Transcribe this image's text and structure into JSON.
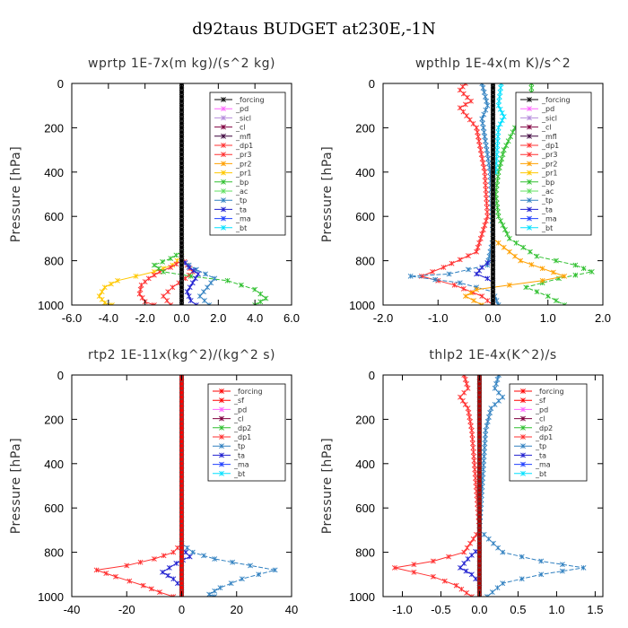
{
  "figure_title": "d92taus  BUDGET at230E,-1N",
  "colors": {
    "_forcing": "#000000",
    "_sf": "#ff0000",
    "_pd": "#ff66ff",
    "_sicl": "#b48cdc",
    "_cl": "#800040",
    "_mfl": "#3c003c",
    "_dp1": "#ff3030",
    "_pr3": "#ff3030",
    "_pr2": "#ffa000",
    "_pr1": "#ffc800",
    "_bp": "#30c030",
    "_ac": "#60e060",
    "_dp2": "#30c030",
    "_tp": "#3080c0",
    "_ta": "#2020d0",
    "_ma": "#2040ff",
    "_bt": "#00e0ff"
  },
  "chart_data": [
    {
      "type": "line",
      "title": "wprtp  1E-7x(m kg)/(s^2 kg)",
      "ylabel": "Pressure [hPa]",
      "xlim": [
        -6,
        6
      ],
      "ylim": [
        1000,
        0
      ],
      "xticks": [
        "-6.0",
        "-4.0",
        "-2.0",
        "0.0",
        "2.0",
        "4.0",
        "6.0"
      ],
      "yticks": [
        "0",
        "200",
        "400",
        "600",
        "800",
        "1000"
      ],
      "legend": [
        "_forcing",
        "_pd",
        "_sicl",
        "_cl",
        "_mfl",
        "_dp1",
        "_pr3",
        "_pr2",
        "_pr1",
        "_bp",
        "_ac",
        "_tp",
        "_ta",
        "_ma",
        "_bt"
      ],
      "series": [
        {
          "name": "_pr1",
          "points": [
            [
              0,
              780
            ],
            [
              -0.5,
              820
            ],
            [
              -1.5,
              850
            ],
            [
              -2.5,
              870
            ],
            [
              -3.5,
              890
            ],
            [
              -4.2,
              920
            ],
            [
              -4.5,
              960
            ],
            [
              -4.2,
              990
            ],
            [
              -3.8,
              1000
            ]
          ]
        },
        {
          "name": "_pr3",
          "points": [
            [
              0,
              800
            ],
            [
              -0.6,
              830
            ],
            [
              -1.2,
              850
            ],
            [
              -1.8,
              880
            ],
            [
              -2.2,
              910
            ],
            [
              -2.3,
              950
            ],
            [
              -2.0,
              985
            ],
            [
              -1.5,
              1000
            ]
          ]
        },
        {
          "name": "_dp1",
          "points": [
            [
              0,
              790
            ],
            [
              0.3,
              820
            ],
            [
              0.6,
              850
            ],
            [
              0.2,
              880
            ],
            [
              -0.5,
              920
            ],
            [
              -1.0,
              960
            ],
            [
              -0.6,
              1000
            ]
          ]
        },
        {
          "name": "_bp",
          "points": [
            [
              0,
              760
            ],
            [
              -0.6,
              790
            ],
            [
              -1.5,
              820
            ],
            [
              -1.0,
              850
            ],
            [
              0.5,
              870
            ],
            [
              2.5,
              890
            ],
            [
              4.0,
              930
            ],
            [
              4.6,
              970
            ],
            [
              4.0,
              1000
            ]
          ]
        },
        {
          "name": "_tp",
          "points": [
            [
              0,
              800
            ],
            [
              0.8,
              840
            ],
            [
              1.8,
              880
            ],
            [
              1.4,
              920
            ],
            [
              1.0,
              960
            ],
            [
              1.5,
              1000
            ]
          ]
        },
        {
          "name": "_ta",
          "points": [
            [
              0,
              790
            ],
            [
              0.4,
              830
            ],
            [
              0.9,
              860
            ],
            [
              0.6,
              900
            ],
            [
              0.3,
              940
            ],
            [
              0.5,
              980
            ],
            [
              0.8,
              1000
            ]
          ]
        },
        {
          "name": "_forcing",
          "points": [
            [
              0,
              0
            ],
            [
              0,
              1000
            ]
          ],
          "thick": true
        }
      ]
    },
    {
      "type": "line",
      "title": "wpthlp  1E-4x(m K)/s^2",
      "ylabel": "Pressure [hPa]",
      "xlim": [
        -2,
        2
      ],
      "ylim": [
        1000,
        0
      ],
      "xticks": [
        "-2.0",
        "-1.0",
        "0.0",
        "1.0",
        "2.0"
      ],
      "yticks": [
        "0",
        "200",
        "400",
        "600",
        "800",
        "1000"
      ],
      "legend": [
        "_forcing",
        "_pd",
        "_sicl",
        "_cl",
        "_mfl",
        "_dp1",
        "_pr3",
        "_pr2",
        "_pr1",
        "_bp",
        "_ac",
        "_tp",
        "_ta",
        "_ma",
        "_bt"
      ],
      "series": [
        {
          "name": "_bp",
          "points": [
            [
              0.7,
              0
            ],
            [
              0.7,
              40
            ],
            [
              0.9,
              100
            ],
            [
              0.6,
              160
            ],
            [
              0.4,
              200
            ],
            [
              0.2,
              300
            ],
            [
              0.1,
              400
            ],
            [
              0.05,
              500
            ],
            [
              0.1,
              600
            ],
            [
              0.3,
              700
            ],
            [
              0.8,
              780
            ],
            [
              1.5,
              820
            ],
            [
              1.8,
              850
            ],
            [
              1.2,
              880
            ],
            [
              0.6,
              920
            ],
            [
              1.0,
              960
            ],
            [
              1.3,
              1000
            ]
          ]
        },
        {
          "name": "_dp1",
          "points": [
            [
              -0.5,
              0
            ],
            [
              -0.6,
              30
            ],
            [
              -0.4,
              80
            ],
            [
              -0.6,
              110
            ],
            [
              -0.3,
              200
            ],
            [
              -0.15,
              400
            ],
            [
              -0.1,
              600
            ],
            [
              -0.3,
              760
            ],
            [
              -0.9,
              830
            ],
            [
              -1.3,
              870
            ],
            [
              -0.7,
              910
            ],
            [
              -0.2,
              960
            ],
            [
              0,
              1000
            ]
          ]
        },
        {
          "name": "_tp",
          "points": [
            [
              -0.2,
              0
            ],
            [
              -0.1,
              100
            ],
            [
              -0.2,
              160
            ],
            [
              -0.05,
              400
            ],
            [
              0,
              700
            ],
            [
              -0.1,
              820
            ],
            [
              -0.8,
              860
            ],
            [
              -1.5,
              870
            ],
            [
              -0.6,
              900
            ],
            [
              0,
              940
            ],
            [
              0.1,
              1000
            ]
          ]
        },
        {
          "name": "_pr2",
          "points": [
            [
              0,
              700
            ],
            [
              0.5,
              800
            ],
            [
              1.3,
              870
            ],
            [
              0.9,
              890
            ],
            [
              -0.3,
              930
            ],
            [
              -0.5,
              960
            ],
            [
              -0.2,
              1000
            ]
          ]
        },
        {
          "name": "_ta",
          "points": [
            [
              0,
              790
            ],
            [
              -0.2,
              830
            ],
            [
              -0.3,
              860
            ],
            [
              -0.1,
              880
            ],
            [
              0,
              900
            ]
          ]
        },
        {
          "name": "_bt",
          "points": [
            [
              0.15,
              0
            ],
            [
              0.1,
              100
            ],
            [
              0.2,
              150
            ],
            [
              0.1,
              200
            ],
            [
              0.05,
              400
            ]
          ]
        },
        {
          "name": "_forcing",
          "points": [
            [
              0,
              0
            ],
            [
              0,
              1000
            ]
          ],
          "thick": true
        }
      ]
    },
    {
      "type": "line",
      "title": "rtp2  1E-11x(kg^2)/(kg^2 s)",
      "ylabel": "Pressure [hPa]",
      "xlim": [
        -40,
        40
      ],
      "ylim": [
        1000,
        0
      ],
      "xticks": [
        "-40",
        "-20",
        "0",
        "20",
        "40"
      ],
      "yticks": [
        "0",
        "200",
        "400",
        "600",
        "800",
        "1000"
      ],
      "legend": [
        "_forcing",
        "_sf",
        "_pd",
        "_cl",
        "_dp2",
        "_dp1",
        "_tp",
        "_ta",
        "_ma",
        "_bt"
      ],
      "series": [
        {
          "name": "_dp1",
          "points": [
            [
              0,
              760
            ],
            [
              -3,
              800
            ],
            [
              -10,
              830
            ],
            [
              -20,
              860
            ],
            [
              -31,
              880
            ],
            [
              -24,
              910
            ],
            [
              -14,
              950
            ],
            [
              -8,
              980
            ],
            [
              -3,
              1000
            ]
          ]
        },
        {
          "name": "_tp",
          "points": [
            [
              0,
              760
            ],
            [
              4,
              800
            ],
            [
              12,
              830
            ],
            [
              25,
              860
            ],
            [
              34,
              880
            ],
            [
              22,
              920
            ],
            [
              14,
              960
            ],
            [
              10,
              990
            ],
            [
              12,
              1000
            ]
          ]
        },
        {
          "name": "_ta",
          "points": [
            [
              0,
              780
            ],
            [
              3,
              820
            ],
            [
              -2,
              850
            ],
            [
              -7,
              890
            ],
            [
              -3,
              920
            ],
            [
              0,
              960
            ]
          ]
        },
        {
          "name": "_forcing",
          "points": [
            [
              0,
              0
            ],
            [
              0,
              1000
            ]
          ],
          "thick": true,
          "color": "#ff0000"
        }
      ]
    },
    {
      "type": "line",
      "title": "thlp2  1E-4x(K^2)/s",
      "ylabel": "Pressure [hPa]",
      "xlim": [
        -1.25,
        1.6
      ],
      "ylim": [
        1000,
        0
      ],
      "xticks": [
        "-1.0",
        "-0.5",
        "0.0",
        "0.5",
        "1.0",
        "1.5"
      ],
      "xtick_values": [
        -1.0,
        -0.5,
        0.0,
        0.5,
        1.0,
        1.5
      ],
      "yticks": [
        "0",
        "200",
        "400",
        "600",
        "800",
        "1000"
      ],
      "legend": [
        "_forcing",
        "_sf",
        "_pd",
        "_cl",
        "_dp2",
        "_dp1",
        "_tp",
        "_ta",
        "_ma",
        "_bt"
      ],
      "series": [
        {
          "name": "_dp1",
          "points": [
            [
              -0.2,
              0
            ],
            [
              -0.15,
              60
            ],
            [
              -0.25,
              100
            ],
            [
              -0.15,
              150
            ],
            [
              -0.1,
              250
            ],
            [
              0,
              700
            ],
            [
              -0.2,
              800
            ],
            [
              -0.6,
              840
            ],
            [
              -1.1,
              870
            ],
            [
              -0.6,
              910
            ],
            [
              -0.3,
              950
            ],
            [
              -0.1,
              1000
            ]
          ]
        },
        {
          "name": "_tp",
          "points": [
            [
              0.25,
              0
            ],
            [
              0.2,
              60
            ],
            [
              0.3,
              100
            ],
            [
              0.15,
              150
            ],
            [
              0.08,
              250
            ],
            [
              0,
              700
            ],
            [
              0.3,
              800
            ],
            [
              0.8,
              840
            ],
            [
              1.35,
              870
            ],
            [
              0.8,
              900
            ],
            [
              0.3,
              940
            ],
            [
              0.1,
              1000
            ]
          ]
        },
        {
          "name": "_ta",
          "points": [
            [
              0,
              780
            ],
            [
              -0.15,
              830
            ],
            [
              -0.25,
              870
            ],
            [
              -0.1,
              900
            ],
            [
              0,
              940
            ]
          ]
        },
        {
          "name": "_forcing",
          "points": [
            [
              0,
              0
            ],
            [
              0,
              1000
            ]
          ],
          "thick": true,
          "color": "#b40000"
        }
      ]
    }
  ]
}
